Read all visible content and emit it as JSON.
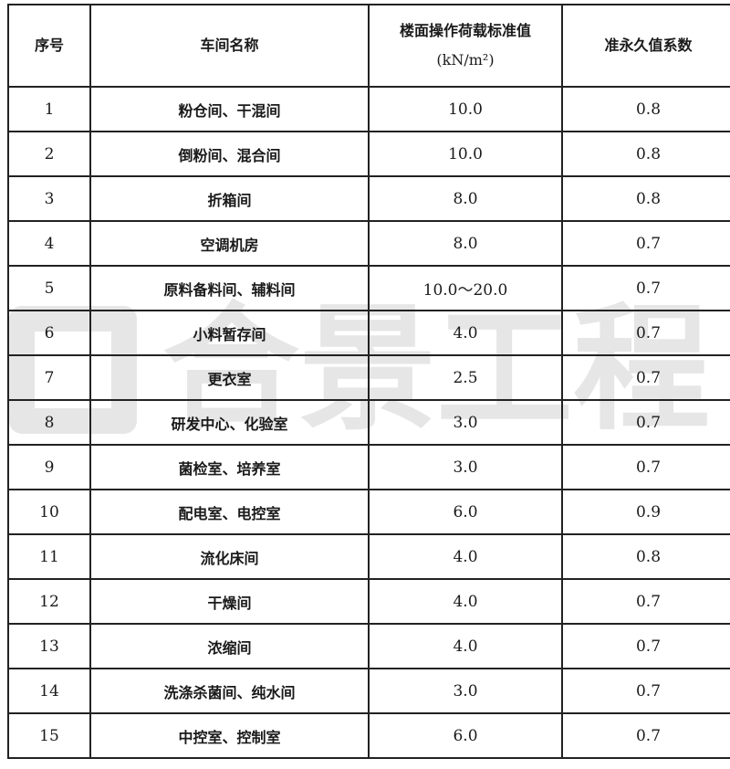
{
  "watermark": {
    "text": "合景工程"
  },
  "table": {
    "headers": [
      "序号",
      "车间名称",
      "楼面操作荷载标准值",
      "准永久值系数"
    ],
    "header_unit": "(kN/m²)",
    "rows": [
      [
        "1",
        "粉仓间、干混间",
        "10.0",
        "0.8"
      ],
      [
        "2",
        "倒粉间、混合间",
        "10.0",
        "0.8"
      ],
      [
        "3",
        "折箱间",
        "8.0",
        "0.8"
      ],
      [
        "4",
        "空调机房",
        "8.0",
        "0.7"
      ],
      [
        "5",
        "原料备料间、辅料间",
        "10.0～20.0",
        "0.7"
      ],
      [
        "6",
        "小料暂存间",
        "4.0",
        "0.7"
      ],
      [
        "7",
        "更衣室",
        "2.5",
        "0.7"
      ],
      [
        "8",
        "研发中心、化验室",
        "3.0",
        "0.7"
      ],
      [
        "9",
        "菌检室、培养室",
        "3.0",
        "0.7"
      ],
      [
        "10",
        "配电室、电控室",
        "6.0",
        "0.9"
      ],
      [
        "11",
        "流化床间",
        "4.0",
        "0.8"
      ],
      [
        "12",
        "干燥间",
        "4.0",
        "0.7"
      ],
      [
        "13",
        "浓缩间",
        "4.0",
        "0.7"
      ],
      [
        "14",
        "洗涤杀菌间、纯水间",
        "3.0",
        "0.7"
      ],
      [
        "15",
        "中控室、控制室",
        "6.0",
        "0.7"
      ]
    ]
  }
}
